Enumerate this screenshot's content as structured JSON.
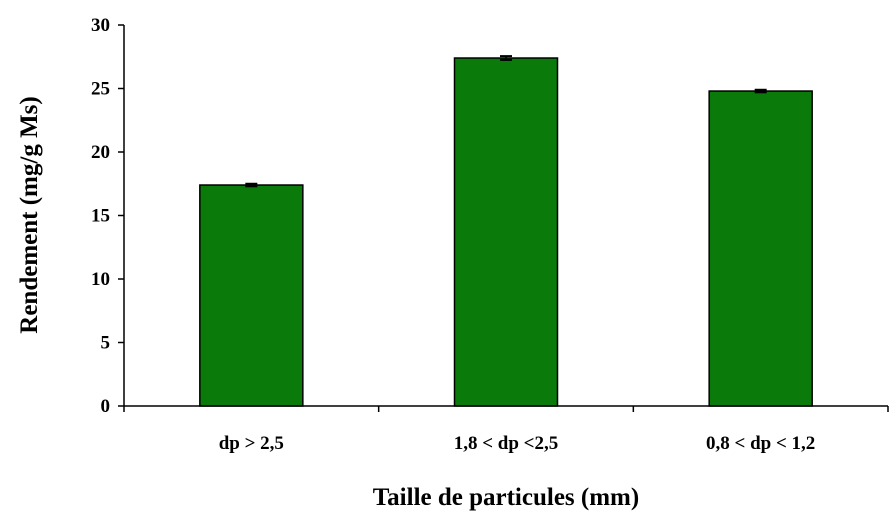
{
  "chart_data": {
    "type": "bar",
    "title": "",
    "xlabel": "Taille de particules (mm)",
    "ylabel": "Rendement (mg/g Ms)",
    "categories": [
      "dp > 2,5",
      "1,8 < dp <2,5",
      "0,8 < dp < 1,2"
    ],
    "values": [
      17.4,
      27.4,
      24.8
    ],
    "errors": [
      0.1,
      0.15,
      0.1
    ],
    "ylim": [
      0,
      30
    ],
    "yticks": [
      0,
      5,
      10,
      15,
      20,
      25,
      30
    ],
    "ytick_labels": [
      "0",
      "5",
      "10",
      "15",
      "20",
      "25",
      "30"
    ],
    "grid": false,
    "legend": "none",
    "bar_color": "#0a7a0a",
    "bar_edge_color": "#000000"
  }
}
